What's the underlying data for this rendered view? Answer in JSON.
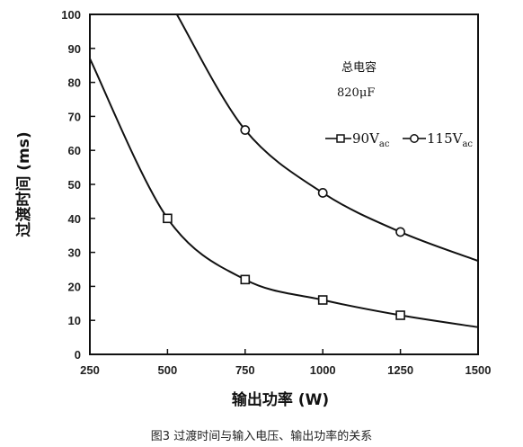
{
  "chart_data": {
    "type": "line",
    "xlabel": "输出功率 (W)",
    "ylabel": "过渡时间 (ms)",
    "x_ticks": [
      250,
      500,
      750,
      1000,
      1250,
      1500
    ],
    "y_ticks": [
      0,
      10,
      20,
      30,
      40,
      50,
      60,
      70,
      80,
      90,
      100
    ],
    "xlim": [
      250,
      1500
    ],
    "ylim": [
      0,
      100
    ],
    "grid": false,
    "annotation": {
      "line1": "总电容",
      "line2": "820μF"
    },
    "series": [
      {
        "name": "90Vac",
        "marker": "square",
        "points": [
          [
            250,
            87
          ],
          [
            500,
            40
          ],
          [
            750,
            22
          ],
          [
            1000,
            16
          ],
          [
            1250,
            11.5
          ],
          [
            1500,
            8
          ]
        ],
        "marked_x": [
          500,
          750,
          1000,
          1250
        ]
      },
      {
        "name": "115Vac",
        "marker": "circle",
        "points": [
          [
            530,
            100
          ],
          [
            750,
            66
          ],
          [
            1000,
            47.5
          ],
          [
            1250,
            36
          ],
          [
            1500,
            27.5
          ]
        ],
        "marked_x": [
          750,
          1000,
          1250
        ]
      }
    ],
    "legend": {
      "position": "top-right",
      "entries": [
        {
          "main": "90V",
          "sub": "ac"
        },
        {
          "main": "115V",
          "sub": "ac"
        }
      ]
    },
    "caption": "图3 过渡时间与输入电压、输出功率的关系"
  }
}
